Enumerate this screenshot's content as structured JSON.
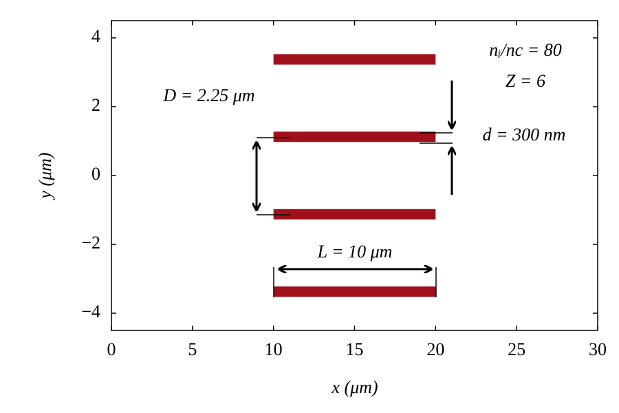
{
  "chart_data": {
    "type": "slabs",
    "xlabel": "x (μm)",
    "ylabel": "y (μm)",
    "xlim": [
      0,
      30
    ],
    "ylim": [
      -4.5,
      4.5
    ],
    "xticks": [
      0,
      5,
      10,
      15,
      20,
      25,
      30
    ],
    "yticks": [
      {
        "value": -4,
        "label": "−4"
      },
      {
        "value": -2,
        "label": "−2"
      },
      0,
      2,
      4
    ],
    "slabs": {
      "x0": [
        10,
        10,
        10,
        10
      ],
      "x1": [
        20,
        20,
        20,
        20
      ],
      "y": [
        3.375,
        1.125,
        -1.125,
        -3.375
      ],
      "thickness": 0.3,
      "color": "#a0101a"
    },
    "annotations": [
      "nᵢ/nc = 80",
      "Z = 6",
      "D = 2.25 μm",
      "d = 300 nm",
      "L = 10 μm"
    ]
  }
}
